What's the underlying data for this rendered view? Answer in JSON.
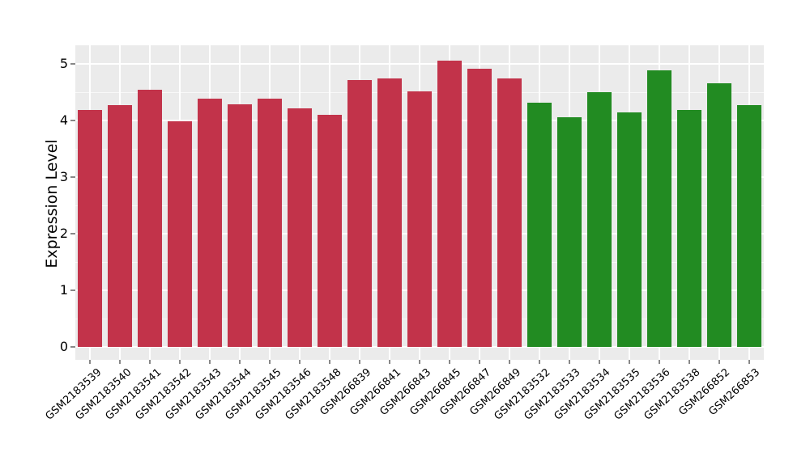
{
  "figure": {
    "background": "#FFFFFF",
    "panel_background": "#EBEBEB",
    "grid_color": "#FFFFFF",
    "tick_color": "#888888",
    "text_color": "#000000"
  },
  "chart_data": {
    "type": "bar",
    "title": "",
    "xlabel": "",
    "ylabel": "Expression Level",
    "ylim": [
      0,
      5.33
    ],
    "yticks": [
      0,
      1,
      2,
      3,
      4,
      5
    ],
    "minor_yticks": [
      0.5,
      1.5,
      2.5,
      3.5,
      4.5
    ],
    "grid": "white major and minor gridlines on gray panel (ggplot style)",
    "legend_position": "none",
    "categories": [
      "GSM2183539",
      "GSM2183540",
      "GSM2183541",
      "GSM2183542",
      "GSM2183543",
      "GSM2183544",
      "GSM2183545",
      "GSM2183546",
      "GSM2183548",
      "GSM266839",
      "GSM266841",
      "GSM266843",
      "GSM266845",
      "GSM266847",
      "GSM266849",
      "GSM2183532",
      "GSM2183533",
      "GSM2183534",
      "GSM2183535",
      "GSM2183536",
      "GSM2183538",
      "GSM266852",
      "GSM266853"
    ],
    "values": [
      4.18,
      4.27,
      4.55,
      3.98,
      4.38,
      4.28,
      4.38,
      4.21,
      4.1,
      4.72,
      4.74,
      4.51,
      5.06,
      4.91,
      4.74,
      4.32,
      4.06,
      4.5,
      4.15,
      4.89,
      4.19,
      4.66,
      4.27
    ],
    "groups": [
      "red",
      "red",
      "red",
      "red",
      "red",
      "red",
      "red",
      "red",
      "red",
      "red",
      "red",
      "red",
      "red",
      "red",
      "red",
      "green",
      "green",
      "green",
      "green",
      "green",
      "green",
      "green",
      "green"
    ],
    "group_colors": {
      "red": "#C2334A",
      "green": "#228B22"
    }
  }
}
